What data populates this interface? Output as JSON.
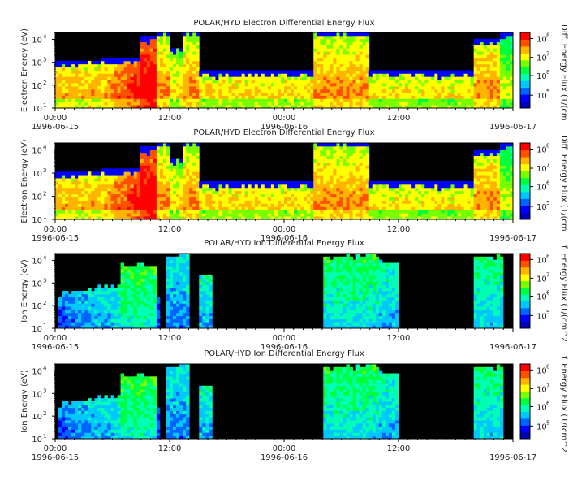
{
  "chart_data": [
    {
      "type": "heatmap",
      "title": "POLAR/HYD  Electron Differential Energy Flux",
      "ylabel": "Electron Energy (eV)",
      "colorbar_label": "Diff. Energy Flux (1/(cm",
      "ylim": [
        10,
        20000
      ],
      "y_scale": "log",
      "y_ticks": [
        "10",
        "10",
        "10",
        "10"
      ],
      "y_tick_exp": [
        "1",
        "2",
        "3",
        "4"
      ],
      "x_ticks": [
        "00:00",
        "12:00",
        "00:00",
        "12:00",
        ""
      ],
      "x_dates": [
        "1996-06-15",
        "1996-06-16",
        "1996-06-17"
      ],
      "colorbar_ticks": [
        "10",
        "10",
        "10",
        "10"
      ],
      "colorbar_exp": [
        "5",
        "6",
        "7",
        "8"
      ],
      "species": "electron"
    },
    {
      "type": "heatmap",
      "title": "POLAR/HYD  Electron Differential Energy Flux",
      "ylabel": "Electron Energy (eV)",
      "colorbar_label": "Diff. Energy Flux (1/(cm",
      "ylim": [
        10,
        20000
      ],
      "y_scale": "log",
      "y_ticks": [
        "10",
        "10",
        "10",
        "10"
      ],
      "y_tick_exp": [
        "1",
        "2",
        "3",
        "4"
      ],
      "x_ticks": [
        "00:00",
        "12:00",
        "00:00",
        "12:00",
        ""
      ],
      "x_dates": [
        "1996-06-15",
        "1996-06-16",
        "1996-06-17"
      ],
      "colorbar_ticks": [
        "10",
        "10",
        "10",
        "10"
      ],
      "colorbar_exp": [
        "5",
        "6",
        "7",
        "8"
      ],
      "species": "electron"
    },
    {
      "type": "heatmap",
      "title": "POLAR/HYD  Ion Differential Energy Flux",
      "ylabel": "Ion Energy (eV)",
      "colorbar_label": "f. Energy Flux (1/(cm^2",
      "ylim": [
        10,
        20000
      ],
      "y_scale": "log",
      "y_ticks": [
        "10",
        "10",
        "10",
        "10"
      ],
      "y_tick_exp": [
        "1",
        "2",
        "3",
        "4"
      ],
      "x_ticks": [
        "00:00",
        "12:00",
        "00:00",
        "12:00",
        ""
      ],
      "x_dates": [
        "1996-06-15",
        "1996-06-16",
        "1996-06-17"
      ],
      "colorbar_ticks": [
        "10",
        "10",
        "10",
        "10"
      ],
      "colorbar_exp": [
        "5",
        "6",
        "7",
        "8"
      ],
      "species": "ion"
    },
    {
      "type": "heatmap",
      "title": "POLAR/HYD  Ion Differential Energy Flux",
      "ylabel": "Ion Energy (eV)",
      "colorbar_label": "f. Energy Flux (1/(cm^2",
      "ylim": [
        10,
        20000
      ],
      "y_scale": "log",
      "y_ticks": [
        "10",
        "10",
        "10",
        "10"
      ],
      "y_tick_exp": [
        "1",
        "2",
        "3",
        "4"
      ],
      "x_ticks": [
        "00:00",
        "12:00",
        "00:00",
        "12:00",
        ""
      ],
      "x_dates": [
        "1996-06-15",
        "1996-06-16",
        "1996-06-17"
      ],
      "colorbar_ticks": [
        "10",
        "10",
        "10",
        "10"
      ],
      "colorbar_exp": [
        "5",
        "6",
        "7",
        "8"
      ],
      "species": "ion"
    }
  ],
  "colors": {
    "background": "#000000",
    "colormap": [
      "#0000b4",
      "#0000ff",
      "#0064ff",
      "#00c8ff",
      "#00ffb4",
      "#00ff3c",
      "#78ff00",
      "#ffff00",
      "#ffb400",
      "#ff5000",
      "#ff0000"
    ]
  }
}
